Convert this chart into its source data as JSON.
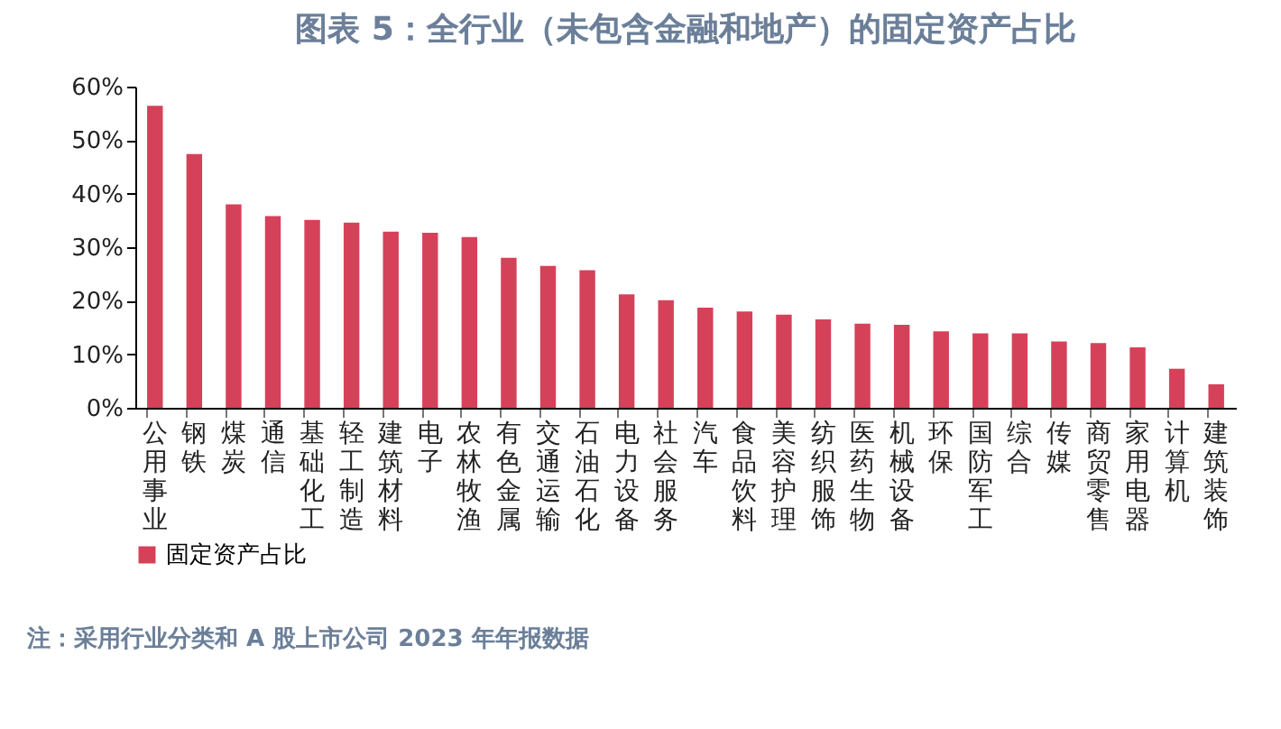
{
  "chart_data": {
    "type": "bar",
    "title": "图表 5：全行业（未包含金融和地产）的固定资产占比",
    "categories": [
      "公用事业",
      "钢铁",
      "煤炭",
      "通信",
      "基础化工",
      "轻工制造",
      "建筑材料",
      "电子",
      "农林牧渔",
      "有色金属",
      "交通运输",
      "石油石化",
      "电力设备",
      "社会服务",
      "汽车",
      "食品饮料",
      "美容护理",
      "纺织服饰",
      "医药生物",
      "机械设备",
      "环保",
      "国防军工",
      "综合",
      "传媒",
      "商贸零售",
      "家用电器",
      "计算机",
      "建筑装饰"
    ],
    "series": [
      {
        "name": "固定资产占比",
        "color": "#d6415a",
        "values": [
          56.4,
          47.4,
          38.0,
          35.8,
          35.1,
          34.6,
          32.9,
          32.7,
          31.9,
          28.0,
          26.5,
          25.7,
          21.2,
          20.1,
          18.7,
          18.0,
          17.4,
          16.5,
          15.7,
          15.5,
          14.3,
          13.9,
          13.9,
          12.4,
          12.1,
          11.3,
          7.3,
          4.4
        ]
      }
    ],
    "ylim": [
      0,
      60
    ],
    "yticks": [
      {
        "value": 0,
        "label": "0%"
      },
      {
        "value": 10,
        "label": "10%"
      },
      {
        "value": 20,
        "label": "20%"
      },
      {
        "value": 30,
        "label": "30%"
      },
      {
        "value": 40,
        "label": "40%"
      },
      {
        "value": 50,
        "label": "50%"
      },
      {
        "value": 60,
        "label": "60%"
      }
    ],
    "grid": false,
    "legend": "bottom",
    "annotations": [
      "注：采用行业分类和 A 股上市公司 2023 年年报数据"
    ]
  }
}
